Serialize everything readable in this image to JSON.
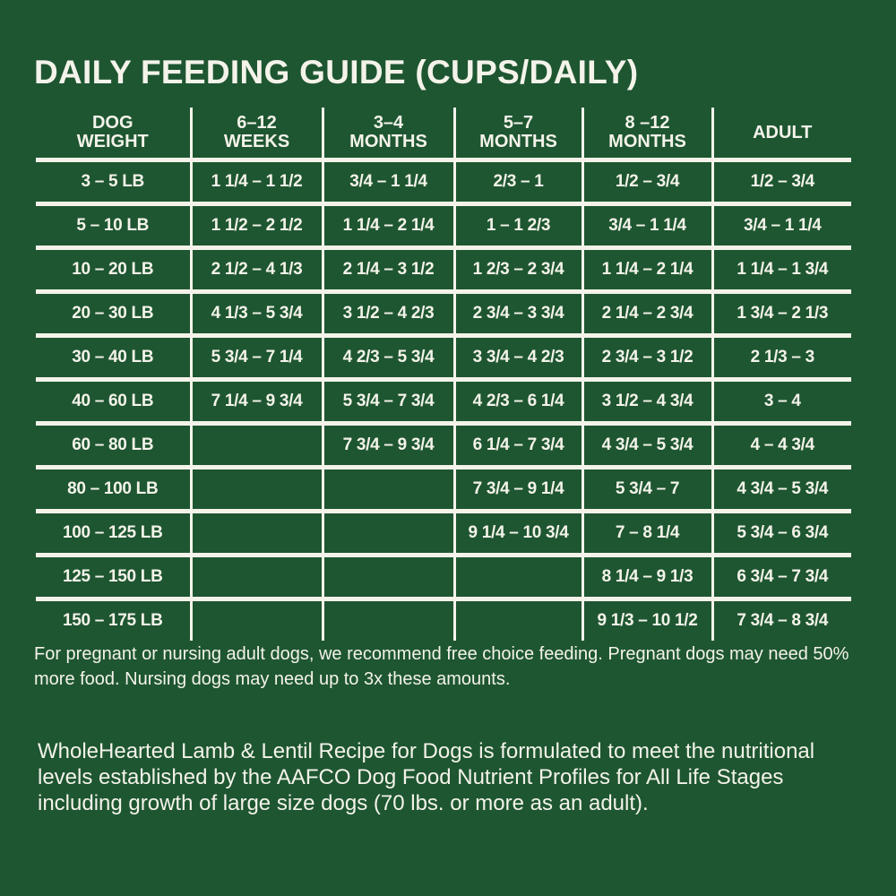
{
  "title": "DAILY FEEDING GUIDE (CUPS/DAILY)",
  "table": {
    "headers": [
      [
        "DOG",
        "WEIGHT"
      ],
      [
        "6–12",
        "WEEKS"
      ],
      [
        "3–4",
        "MONTHS"
      ],
      [
        "5–7",
        "MONTHS"
      ],
      [
        "8 –12",
        "MONTHS"
      ],
      [
        "",
        "ADULT"
      ]
    ],
    "rows": [
      [
        "3 – 5 LB",
        "1 1/4 – 1 1/2",
        "3/4 – 1 1/4",
        "2/3 – 1",
        "1/2 – 3/4",
        "1/2 – 3/4"
      ],
      [
        "5 – 10 LB",
        "1 1/2 – 2 1/2",
        "1 1/4 – 2 1/4",
        "1 – 1 2/3",
        "3/4 – 1 1/4",
        "3/4 – 1 1/4"
      ],
      [
        "10 – 20 LB",
        "2 1/2 – 4 1/3",
        "2 1/4 – 3 1/2",
        "1 2/3 – 2 3/4",
        "1 1/4 – 2 1/4",
        "1 1/4 – 1 3/4"
      ],
      [
        "20 – 30 LB",
        "4 1/3 – 5 3/4",
        "3 1/2 – 4 2/3",
        "2 3/4 – 3 3/4",
        "2 1/4 – 2 3/4",
        "1 3/4 – 2 1/3"
      ],
      [
        "30 – 40 LB",
        "5 3/4 – 7 1/4",
        "4 2/3 – 5 3/4",
        "3 3/4 – 4 2/3",
        "2 3/4 – 3 1/2",
        "2 1/3 – 3"
      ],
      [
        "40 – 60 LB",
        "7 1/4 – 9 3/4",
        "5 3/4 – 7 3/4",
        "4 2/3 – 6 1/4",
        "3 1/2 – 4 3/4",
        "3 – 4"
      ],
      [
        "60 – 80 LB",
        "",
        "7 3/4 – 9 3/4",
        "6 1/4 – 7 3/4",
        "4 3/4 – 5 3/4",
        "4 – 4 3/4"
      ],
      [
        "80 – 100 LB",
        "",
        "",
        "7 3/4 – 9 1/4",
        "5 3/4 – 7",
        "4 3/4 – 5 3/4"
      ],
      [
        "100 – 125 LB",
        "",
        "",
        "9 1/4 – 10 3/4",
        "7 – 8 1/4",
        "5 3/4 – 6 3/4"
      ],
      [
        "125 – 150 LB",
        "",
        "",
        "",
        "8 1/4 – 9 1/3",
        "6 3/4 – 7 3/4"
      ],
      [
        "150 – 175 LB",
        "",
        "",
        "",
        "9 1/3 – 10 1/2",
        "7 3/4 – 8 3/4"
      ]
    ]
  },
  "note": "For pregnant or nursing adult dogs, we recommend free choice feeding. Pregnant dogs may need 50% more food. Nursing dogs may need up to 3x these amounts.",
  "description": "WholeHearted Lamb & Lentil Recipe for Dogs is formulated to meet the nutritional levels established by the AAFCO Dog Food Nutrient Profiles for All Life Stages including growth of large size dogs (70 lbs. or more as an adult).",
  "colors": {
    "background": "#1e5631",
    "text": "#f4f3ea"
  }
}
